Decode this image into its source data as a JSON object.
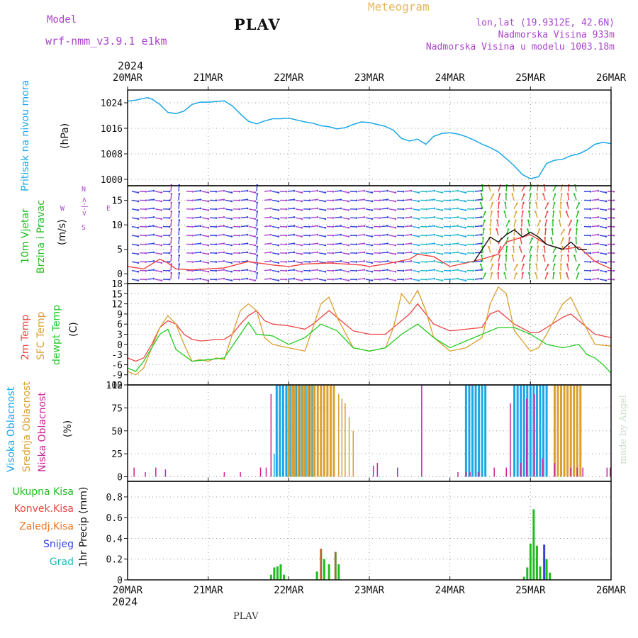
{
  "header": {
    "model_label": "Model",
    "model_name": "wrf-nmm_v3.9.1 e1km",
    "station": "PLAV",
    "chart_kind": "Meteogram",
    "coords": "lon,lat (19.9312E, 42.6N)",
    "elevation": "Nadmorska Visina 933m",
    "model_elevation": "Nadmorska Visina u modelu 1003.18m",
    "year_top": "2024",
    "year_bottom": "2024",
    "footer_station": "PLAV",
    "watermark": "made by Angel"
  },
  "colors": {
    "pressure": "#1aa7e8",
    "wind_label": "#22bb22",
    "wind_dir": "#aa44cc",
    "temp2m": "#ee4444",
    "tsfc": "#d9a030",
    "dewpt": "#22cc22",
    "cloud_high": "#1aa7e8",
    "cloud_mid": "#d9a030",
    "cloud_low": "#cc2299",
    "precip_total": "#22bb22",
    "precip_conv": "#ee4444",
    "precip_frozen": "#ee7722",
    "precip_snow": "#3344dd",
    "precip_grad": "#22bbbb"
  },
  "chart_data": {
    "type": "line",
    "x_axis": {
      "labels": [
        "20MAR",
        "21MAR",
        "22MAR",
        "23MAR",
        "24MAR",
        "25MAR",
        "26MAR"
      ],
      "unit": "days from 2024-03-20 00Z",
      "range": [
        0,
        6
      ]
    },
    "panels": [
      {
        "name": "pressure",
        "type": "line",
        "ylabel_lines": [
          "Pritisak na nivou mora",
          "(hPa)"
        ],
        "ylim": [
          998,
          1028
        ],
        "yticks": [
          1000,
          1008,
          1016,
          1024
        ],
        "series": [
          {
            "values_x": [
              0,
              0.1,
              0.2,
              0.25,
              0.3,
              0.4,
              0.5,
              0.6,
              0.7,
              0.8,
              0.9,
              1.0,
              1.1,
              1.2,
              1.3,
              1.4,
              1.5,
              1.6,
              1.7,
              1.8,
              1.9,
              2.0,
              2.1,
              2.2,
              2.3,
              2.4,
              2.5,
              2.6,
              2.7,
              2.8,
              2.9,
              3.0,
              3.1,
              3.2,
              3.3,
              3.4,
              3.5,
              3.6,
              3.7,
              3.8,
              3.9,
              4.0,
              4.1,
              4.2,
              4.3,
              4.4,
              4.5,
              4.6,
              4.7,
              4.8,
              4.9,
              5.0,
              5.1,
              5.2,
              5.3,
              5.4,
              5.5,
              5.6,
              5.7,
              5.8,
              5.9,
              6.0
            ],
            "values_y": [
              1024.5,
              1024.8,
              1025.4,
              1025.6,
              1025.2,
              1023.5,
              1021.0,
              1020.6,
              1021.4,
              1023.5,
              1024.2,
              1024.2,
              1024.4,
              1024.6,
              1023.0,
              1020.5,
              1018.2,
              1017.4,
              1018.3,
              1019.0,
              1019.0,
              1019.2,
              1018.6,
              1018.0,
              1017.6,
              1016.8,
              1016.5,
              1015.8,
              1016.2,
              1017.2,
              1018.0,
              1017.8,
              1017.2,
              1016.6,
              1015.4,
              1012.8,
              1012.0,
              1012.6,
              1011.0,
              1013.5,
              1014.4,
              1014.6,
              1014.2,
              1013.4,
              1012.3,
              1011.0,
              1010.0,
              1008.6,
              1006.5,
              1004.2,
              1001.5,
              1000.2,
              1000.8,
              1005.0,
              1006.0,
              1006.3,
              1007.4,
              1008.0,
              1009.2,
              1011.0,
              1011.6,
              1011.2
            ]
          }
        ]
      },
      {
        "name": "wind",
        "type": "line",
        "ylabel_lines": [
          "10m Vjetar",
          "Brzina i Pravac",
          "(m/s)"
        ],
        "direction_key": [
          "N",
          "<-|->",
          "W",
          "E",
          "S"
        ],
        "ylim": [
          -2,
          18
        ],
        "yticks": [
          0,
          5,
          10,
          15
        ],
        "series": [
          {
            "name": "speed",
            "color": "#ee4444",
            "values_x": [
              0,
              0.2,
              0.4,
              0.5,
              0.6,
              0.8,
              1.0,
              1.2,
              1.5,
              1.8,
              2.0,
              2.2,
              2.5,
              2.7,
              2.9,
              3.0,
              3.2,
              3.5,
              3.6,
              3.8,
              4.0,
              4.2,
              4.4,
              4.6,
              4.7,
              4.9,
              5.0,
              5.2,
              5.4,
              5.6,
              5.8,
              6.0
            ],
            "values_y": [
              1.5,
              1.0,
              3.0,
              2.2,
              1.0,
              0.8,
              1.0,
              1.2,
              2.5,
              1.8,
              1.5,
              2.0,
              2.2,
              2.0,
              1.8,
              1.5,
              2.0,
              3.0,
              4.0,
              3.5,
              1.5,
              2.2,
              3.0,
              4.0,
              6.5,
              7.5,
              8.0,
              6.0,
              5.0,
              5.5,
              2.5,
              1.0
            ]
          },
          {
            "name": "gust",
            "color": "#111111",
            "values_x": [
              4.3,
              4.4,
              4.5,
              4.6,
              4.7,
              4.8,
              4.9,
              5.0,
              5.1,
              5.2,
              5.3,
              5.4,
              5.5,
              5.6,
              5.7
            ],
            "values_y": [
              2.5,
              5.0,
              7.5,
              6.5,
              8.0,
              9.0,
              7.5,
              8.5,
              7.5,
              6.0,
              5.5,
              5.0,
              6.5,
              5.0,
              5.0
            ]
          }
        ]
      },
      {
        "name": "temperature",
        "type": "line",
        "ylabel_lines": [
          "2m Temp",
          "SFC Temp",
          "dewpt Temp",
          "(C)"
        ],
        "ylim": [
          -12,
          18
        ],
        "yticks": [
          -12,
          -9,
          -6,
          -3,
          0,
          3,
          6,
          9,
          12,
          15,
          18
        ],
        "series": [
          {
            "name": "2m Temp",
            "values_x": [
              0,
              0.1,
              0.2,
              0.3,
              0.4,
              0.5,
              0.6,
              0.7,
              0.8,
              0.9,
              1.0,
              1.1,
              1.2,
              1.3,
              1.4,
              1.5,
              1.6,
              1.7,
              1.8,
              2.0,
              2.2,
              2.3,
              2.5,
              2.6,
              2.8,
              3.0,
              3.2,
              3.3,
              3.5,
              3.6,
              3.8,
              4.0,
              4.2,
              4.4,
              4.5,
              4.6,
              4.8,
              5.0,
              5.1,
              5.2,
              5.4,
              5.5,
              5.6,
              5.8,
              6.0
            ],
            "values_y": [
              -4,
              -5,
              -4,
              0,
              5,
              7,
              6,
              3,
              1.5,
              1,
              1.2,
              1.5,
              1.5,
              3,
              6,
              8.5,
              10,
              7,
              6,
              5.5,
              4.5,
              6,
              10,
              8,
              4,
              3,
              3,
              5,
              9,
              12,
              6,
              4,
              4.5,
              5,
              9,
              10,
              6,
              3.5,
              3.5,
              5,
              8,
              9,
              7,
              3,
              2
            ]
          },
          {
            "name": "SFC Temp",
            "values_x": [
              0,
              0.1,
              0.2,
              0.3,
              0.4,
              0.5,
              0.6,
              0.7,
              0.8,
              0.9,
              1.0,
              1.1,
              1.2,
              1.3,
              1.4,
              1.5,
              1.6,
              1.7,
              1.8,
              2.0,
              2.2,
              2.3,
              2.4,
              2.5,
              2.6,
              2.8,
              3.0,
              3.2,
              3.3,
              3.4,
              3.5,
              3.6,
              3.7,
              3.8,
              4.0,
              4.2,
              4.4,
              4.5,
              4.6,
              4.7,
              4.8,
              5.0,
              5.1,
              5.2,
              5.4,
              5.5,
              5.6,
              5.8,
              6.0
            ],
            "values_y": [
              -8,
              -9,
              -7,
              -1,
              5,
              8.5,
              6,
              0,
              -5,
              -4.5,
              -5,
              -4,
              -4.5,
              3,
              10,
              12,
              10,
              2,
              0,
              -1,
              -2,
              5,
              12,
              14,
              8,
              -1,
              -2,
              -1,
              5,
              15,
              12,
              16,
              10,
              2,
              -2,
              -1,
              2,
              12,
              17,
              15,
              4,
              -2,
              -1,
              3,
              12,
              14,
              9,
              0,
              -0.5
            ]
          },
          {
            "name": "dewpt Temp",
            "values_x": [
              0,
              0.1,
              0.2,
              0.3,
              0.4,
              0.5,
              0.6,
              0.8,
              1.0,
              1.2,
              1.4,
              1.5,
              1.6,
              1.8,
              2.0,
              2.2,
              2.4,
              2.6,
              2.8,
              3.0,
              3.2,
              3.4,
              3.6,
              3.8,
              4.0,
              4.2,
              4.4,
              4.6,
              4.8,
              5.0,
              5.2,
              5.4,
              5.6,
              5.7,
              5.8,
              5.9,
              6.0
            ],
            "values_y": [
              -7,
              -8,
              -5,
              -1,
              3,
              4.5,
              -1.5,
              -5,
              -4.5,
              -4,
              3,
              6.5,
              3,
              2.5,
              0,
              2,
              6,
              4,
              -1,
              -2,
              -1,
              3,
              6,
              2,
              -1,
              1,
              3,
              5,
              5,
              3,
              0,
              -1,
              0,
              -3,
              -4,
              -6,
              -8.5
            ]
          }
        ]
      },
      {
        "name": "cloud",
        "type": "bar",
        "ylabel_lines": [
          "Visoka Oblacnost",
          "Srednja Oblacnost",
          "Niska Oblacnost",
          "(%)"
        ],
        "ylim": [
          -5,
          100
        ],
        "yticks": [
          0,
          25,
          50,
          75,
          100
        ],
        "series": [
          {
            "name": "Visoka Oblacnost",
            "blocks": [
              [
                1.85,
                2.3,
                100
              ],
              [
                4.2,
                4.45,
                100
              ],
              [
                4.8,
                5.2,
                100
              ]
            ],
            "singles_x": [
              1.78,
              1.82
            ],
            "singles_y": [
              10,
              25
            ]
          },
          {
            "name": "Srednja Oblacnost",
            "blocks": [
              [
                2.0,
                2.6,
                100
              ],
              [
                5.3,
                5.65,
                100
              ]
            ],
            "singles_x": [
              2.62,
              2.66,
              2.7,
              2.75,
              2.8
            ],
            "singles_y": [
              90,
              85,
              80,
              65,
              50
            ]
          },
          {
            "name": "Niska Oblacnost",
            "singles_x": [
              0.08,
              0.22,
              0.35,
              0.47,
              1.2,
              1.4,
              1.65,
              1.72,
              1.78,
              3.05,
              3.1,
              3.35,
              3.65,
              4.1,
              4.2,
              4.25,
              4.35,
              4.55,
              4.7,
              4.75,
              4.88,
              4.95,
              5.05,
              5.15,
              5.3,
              5.5,
              5.58,
              5.65,
              5.95,
              5.99
            ],
            "singles_y": [
              10,
              5,
              10,
              8,
              5,
              5,
              10,
              10,
              90,
              12,
              15,
              10,
              100,
              5,
              5,
              5,
              5,
              10,
              10,
              80,
              15,
              85,
              90,
              20,
              15,
              10,
              10,
              10,
              10,
              10
            ]
          }
        ]
      },
      {
        "name": "precip",
        "type": "bar",
        "ylabel_lines": [
          "1hr Precip (mm)"
        ],
        "legend": [
          "Ukupna Kisa",
          "Konvek.Kisa",
          "Zaledj.Kisa",
          "Snijeg",
          "Grad"
        ],
        "ylim": [
          0,
          0.95
        ],
        "yticks": [
          0,
          0.2,
          0.4,
          0.6,
          0.8
        ],
        "series": [
          {
            "name": "Ukupna Kisa",
            "x": [
              1.78,
              1.82,
              1.86,
              1.9,
              1.94,
              2.35,
              2.4,
              2.44,
              2.5,
              2.58,
              2.62,
              4.92,
              4.96,
              5.0,
              5.04,
              5.08,
              5.12,
              5.2,
              5.24
            ],
            "values": [
              0.05,
              0.12,
              0.13,
              0.15,
              0.05,
              0.08,
              0.3,
              0.2,
              0.15,
              0.27,
              0.15,
              0.03,
              0.12,
              0.35,
              0.68,
              0.33,
              0.13,
              0.2,
              0.07
            ]
          },
          {
            "name": "Konvek.Kisa",
            "x": [
              2.4,
              2.58
            ],
            "values": [
              0.3,
              0.27
            ]
          },
          {
            "name": "Snijeg",
            "x": [
              5.17
            ],
            "values": [
              0.34
            ]
          }
        ]
      }
    ]
  }
}
